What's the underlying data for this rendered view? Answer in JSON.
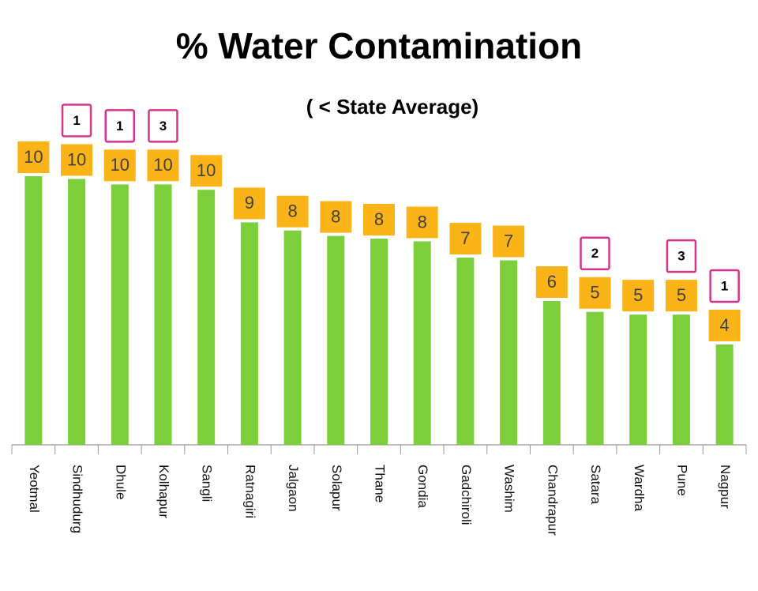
{
  "chart_data": {
    "type": "bar",
    "title": "% Water Contamination",
    "subtitle": "( < State Average)",
    "categories": [
      "Yeotmal",
      "Sindhudurg",
      "Dhule",
      "Kolhapur",
      "Sangli",
      "Ratnagiri",
      "Jalgaon",
      "Solapur",
      "Thane",
      "Gondia",
      "Gadchiroli",
      "Washim",
      "Chandrapur",
      "Satara",
      "Wardha",
      "Pune",
      "Nagpur"
    ],
    "values": [
      10.3,
      10.2,
      10.0,
      10.0,
      9.8,
      8.6,
      8.3,
      8.1,
      8.0,
      7.9,
      7.3,
      7.2,
      5.7,
      5.3,
      5.2,
      5.2,
      4.1
    ],
    "value_labels": [
      "10",
      "10",
      "10",
      "10",
      "10",
      "9",
      "8",
      "8",
      "8",
      "8",
      "7",
      "7",
      "6",
      "5",
      "5",
      "5",
      "4"
    ],
    "color": "#7ccf3a",
    "label_color": "#fbb417",
    "annotation_color": "#d6338a",
    "ylim": [
      0.4,
      14
    ],
    "annotations": [
      {
        "text": "1",
        "category": "Sindhudurg"
      },
      {
        "text": "1",
        "category": "Dhule"
      },
      {
        "text": "3",
        "category": "Kolhapur"
      },
      {
        "text": "2",
        "category": "Satara"
      },
      {
        "text": "3",
        "category": "Pune"
      },
      {
        "text": "1",
        "category": "Nagpur"
      }
    ]
  }
}
